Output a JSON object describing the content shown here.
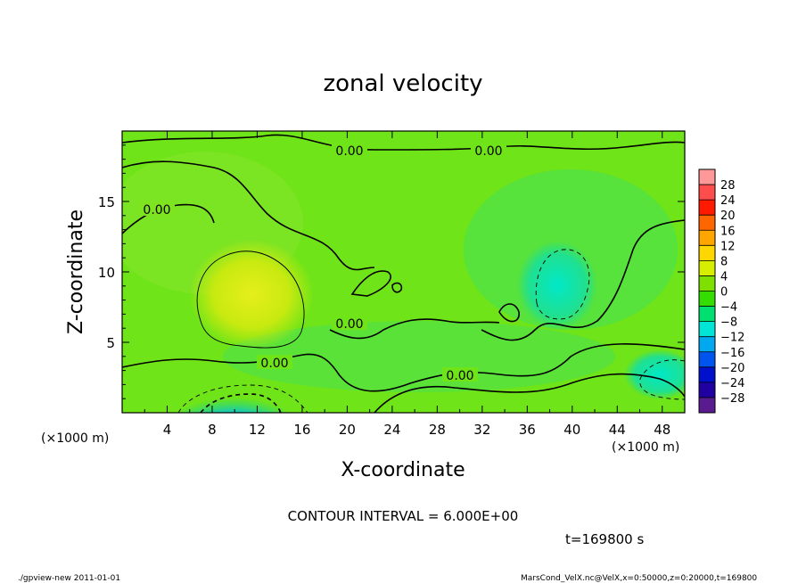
{
  "chart_data": {
    "type": "heatmap",
    "title": "zonal velocity",
    "xlabel": "X-coordinate",
    "ylabel": "Z-coordinate",
    "x_unit": "(×1000 m)",
    "y_unit": "(×1000 m)",
    "xlim": [
      0,
      50
    ],
    "ylim": [
      0,
      20
    ],
    "x_ticks": [
      "4",
      "8",
      "12",
      "16",
      "20",
      "24",
      "28",
      "32",
      "36",
      "40",
      "44",
      "48"
    ],
    "y_ticks": [
      "5",
      "10",
      "15"
    ],
    "colorbar_ticks": [
      "28",
      "24",
      "20",
      "16",
      "12",
      "8",
      "4",
      "0",
      "−4",
      "−8",
      "−12",
      "−16",
      "−20",
      "−24",
      "−28"
    ],
    "colorbar_colors": [
      "#ff9999",
      "#ff4d4d",
      "#ff1a00",
      "#ff6600",
      "#ffa500",
      "#ffd700",
      "#d8ee00",
      "#7fe000",
      "#33dd00",
      "#00e070",
      "#00e5d5",
      "#00a8f0",
      "#0055ee",
      "#0010cc",
      "#2000a0",
      "#5a1a90"
    ],
    "contour_labels": [
      "0.00",
      "0.00",
      "0.00",
      "0.00",
      "0.00",
      "0.00"
    ],
    "contour_interval": "CONTOUR INTERVAL = 6.000E+00",
    "time": "t=169800 s",
    "features": [
      {
        "kind": "positive-max",
        "x": 11.5,
        "z": 8.5,
        "value": 9
      },
      {
        "kind": "negative-min",
        "x": 11.0,
        "z": 0.5,
        "value": -16
      },
      {
        "kind": "negative-min",
        "x": 38.5,
        "z": 10.5,
        "value": -7
      },
      {
        "kind": "negative-min",
        "x": 47.5,
        "z": 3.0,
        "value": -5
      },
      {
        "kind": "positive-max",
        "x": 29.0,
        "z": 0.5,
        "value": 8
      }
    ]
  },
  "footer": {
    "left": "./gpview-new  2011-01-01",
    "right": "MarsCond_VelX.nc@VelX,x=0:50000,z=0:20000,t=169800"
  }
}
